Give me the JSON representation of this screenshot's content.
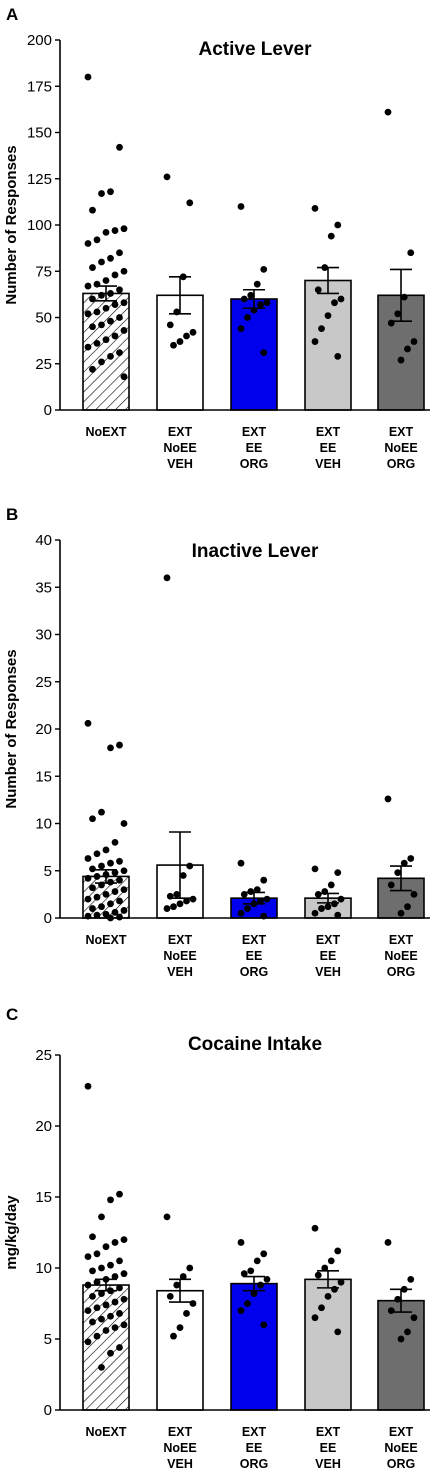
{
  "chart_data": [
    {
      "panel": "A",
      "type": "bar",
      "title": "Active Lever",
      "ylabel": "Number of Responses",
      "xlabel": "",
      "ylim": [
        0,
        200
      ],
      "yticks": [
        0,
        25,
        50,
        75,
        100,
        125,
        150,
        175,
        200
      ],
      "categories": [
        [
          "NoEXT"
        ],
        [
          "EXT",
          "NoEE",
          "VEH"
        ],
        [
          "EXT",
          "EE",
          "ORG"
        ],
        [
          "EXT",
          "EE",
          "VEH"
        ],
        [
          "EXT",
          "NoEE",
          "ORG"
        ]
      ],
      "colors": [
        "#ffffff",
        "#ffffff",
        "#0000ee",
        "#c8c8c8",
        "#6e6e6e"
      ],
      "hatched": [
        true,
        false,
        false,
        false,
        false
      ],
      "values": [
        63,
        62,
        60,
        70,
        62
      ],
      "sem": [
        4,
        10,
        5,
        7,
        14
      ],
      "points": [
        [
          180,
          142,
          118,
          117,
          108,
          98,
          97,
          96,
          92,
          90,
          85,
          82,
          80,
          77,
          75,
          73,
          70,
          68,
          67,
          65,
          63,
          62,
          60,
          58,
          57,
          55,
          53,
          52,
          50,
          48,
          46,
          45,
          43,
          40,
          38,
          36,
          34,
          31,
          29,
          26,
          22,
          18
        ],
        [
          126,
          112,
          72,
          53,
          46,
          42,
          40,
          37,
          35
        ],
        [
          110,
          76,
          68,
          62,
          60,
          58,
          57,
          54,
          50,
          44,
          31
        ],
        [
          109,
          100,
          94,
          77,
          65,
          60,
          58,
          51,
          44,
          37,
          29
        ],
        [
          161,
          85,
          61,
          52,
          47,
          37,
          33,
          27
        ]
      ]
    },
    {
      "panel": "B",
      "type": "bar",
      "title": "Inactive Lever",
      "ylabel": "Number of Responses",
      "xlabel": "",
      "ylim": [
        0,
        40
      ],
      "yticks": [
        0,
        5,
        10,
        15,
        20,
        25,
        30,
        35,
        40
      ],
      "categories": [
        [
          "NoEXT"
        ],
        [
          "EXT",
          "NoEE",
          "VEH"
        ],
        [
          "EXT",
          "EE",
          "ORG"
        ],
        [
          "EXT",
          "EE",
          "VEH"
        ],
        [
          "EXT",
          "NoEE",
          "ORG"
        ]
      ],
      "colors": [
        "#ffffff",
        "#ffffff",
        "#0000ee",
        "#c8c8c8",
        "#6e6e6e"
      ],
      "hatched": [
        true,
        false,
        false,
        false,
        false
      ],
      "values": [
        4.4,
        5.6,
        2.1,
        2.1,
        4.2
      ],
      "sem": [
        0.7,
        3.5,
        0.6,
        0.5,
        1.3
      ],
      "points": [
        [
          20.6,
          18.3,
          18.0,
          11.2,
          10.5,
          10.0,
          8.0,
          7.2,
          6.8,
          6.3,
          6.0,
          5.8,
          5.5,
          5.2,
          5.0,
          4.8,
          4.6,
          4.4,
          4.2,
          4.0,
          3.8,
          3.5,
          3.2,
          3.0,
          2.8,
          2.5,
          2.2,
          2.0,
          1.8,
          1.5,
          1.2,
          1.0,
          0.8,
          0.6,
          0.4,
          0.3,
          0.2,
          0.1,
          0
        ],
        [
          36.0,
          5.5,
          4.5,
          2.5,
          2.3,
          2.0,
          1.8,
          1.5,
          1.2,
          1.0
        ],
        [
          5.8,
          4.0,
          3.0,
          2.8,
          2.5,
          2.0,
          1.8,
          1.5,
          1.0,
          0.5,
          0.2
        ],
        [
          5.2,
          4.8,
          3.5,
          2.8,
          2.5,
          2.0,
          1.5,
          1.2,
          1.0,
          0.5,
          0.3
        ],
        [
          12.6,
          6.3,
          5.8,
          4.8,
          3.5,
          2.5,
          1.2,
          0.5
        ]
      ]
    },
    {
      "panel": "C",
      "type": "bar",
      "title": "Cocaine Intake",
      "ylabel": "mg/kg/day",
      "xlabel": "",
      "ylim": [
        0,
        25
      ],
      "yticks": [
        0,
        5,
        10,
        15,
        20,
        25
      ],
      "categories": [
        [
          "NoEXT"
        ],
        [
          "EXT",
          "NoEE",
          "VEH"
        ],
        [
          "EXT",
          "EE",
          "ORG"
        ],
        [
          "EXT",
          "EE",
          "VEH"
        ],
        [
          "EXT",
          "NoEE",
          "ORG"
        ]
      ],
      "colors": [
        "#ffffff",
        "#ffffff",
        "#0000ee",
        "#c8c8c8",
        "#6e6e6e"
      ],
      "hatched": [
        true,
        false,
        false,
        false,
        false
      ],
      "values": [
        8.8,
        8.4,
        8.9,
        9.2,
        7.7
      ],
      "sem": [
        0.4,
        0.8,
        0.5,
        0.6,
        0.8
      ],
      "points": [
        [
          22.8,
          15.2,
          14.8,
          13.6,
          12.2,
          12.0,
          11.8,
          11.5,
          11.0,
          10.8,
          10.5,
          10.2,
          10.0,
          9.8,
          9.6,
          9.4,
          9.2,
          9.0,
          8.8,
          8.6,
          8.4,
          8.2,
          8.0,
          7.8,
          7.6,
          7.4,
          7.2,
          7.0,
          6.8,
          6.6,
          6.4,
          6.2,
          6.0,
          5.8,
          5.6,
          5.2,
          4.8,
          4.4,
          4.0,
          3.0
        ],
        [
          13.6,
          10.0,
          9.4,
          8.8,
          8.0,
          7.5,
          6.8,
          5.8,
          5.2
        ],
        [
          11.8,
          11.0,
          10.5,
          9.8,
          9.6,
          9.2,
          8.8,
          8.2,
          7.5,
          7.0,
          6.0
        ],
        [
          12.8,
          11.2,
          10.5,
          10.0,
          9.5,
          9.0,
          8.5,
          8.0,
          7.2,
          6.5,
          5.5
        ],
        [
          11.8,
          9.2,
          8.5,
          7.8,
          7.0,
          6.5,
          5.5,
          5.0
        ]
      ]
    }
  ]
}
